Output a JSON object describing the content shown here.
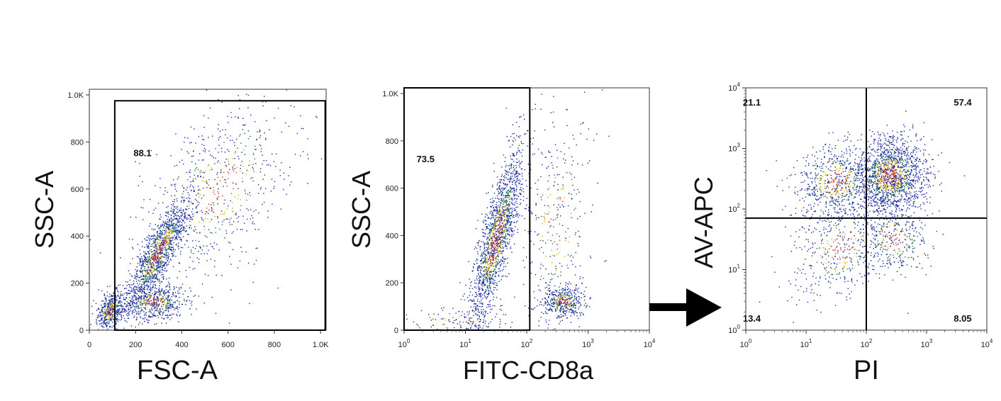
{
  "arrow": {
    "icon": "right-arrow-icon",
    "color": "#000000"
  },
  "chart_data": [
    {
      "type": "scatter",
      "title": "",
      "xlabel": "FSC-A",
      "ylabel": "SSC-A",
      "x_scale": "linear",
      "y_scale": "linear",
      "xlim": [
        0,
        1024
      ],
      "ylim": [
        0,
        1024
      ],
      "x_ticks": [
        {
          "v": 0,
          "t": "0"
        },
        {
          "v": 200,
          "t": "200"
        },
        {
          "v": 400,
          "t": "400"
        },
        {
          "v": 600,
          "t": "600"
        },
        {
          "v": 800,
          "t": "800"
        },
        {
          "v": 1000,
          "t": "1.0K"
        }
      ],
      "y_ticks": [
        {
          "v": 0,
          "t": "0"
        },
        {
          "v": 200,
          "t": "200"
        },
        {
          "v": 400,
          "t": "400"
        },
        {
          "v": 600,
          "t": "600"
        },
        {
          "v": 800,
          "t": "800"
        },
        {
          "v": 1000,
          "t": "1.0K"
        }
      ],
      "gate": {
        "shape": "polygon",
        "points": [
          [
            110,
            975
          ],
          [
            1020,
            975
          ],
          [
            1020,
            0
          ],
          [
            110,
            0
          ]
        ]
      },
      "annotations": [
        {
          "text": "88.1",
          "x": 230,
          "y": 750
        }
      ],
      "point_colors": [
        "#1a2a9a",
        "#1a2a9a",
        "#1f7a3a",
        "#d4b400",
        "#d43a1a"
      ],
      "clusters": [
        {
          "n": 1300,
          "cx": 300,
          "cy": 330,
          "sx": 70,
          "sy": 120,
          "rho": 0.86
        },
        {
          "n": 600,
          "cx": 280,
          "cy": 120,
          "sx": 70,
          "sy": 40,
          "rho": 0.1
        },
        {
          "n": 450,
          "cx": 90,
          "cy": 80,
          "sx": 30,
          "sy": 40,
          "rho": 0.3
        },
        {
          "n": 700,
          "cx": 560,
          "cy": 600,
          "sx": 170,
          "sy": 210,
          "rho": 0.55
        }
      ]
    },
    {
      "type": "scatter",
      "title": "",
      "xlabel": "FITC-CD8a",
      "ylabel": "SSC-A",
      "x_scale": "log",
      "y_scale": "linear",
      "xlim": [
        0,
        4
      ],
      "ylim": [
        0,
        1024
      ],
      "x_ticks": [
        {
          "v": 0,
          "t": "10^0"
        },
        {
          "v": 1,
          "t": "10^1"
        },
        {
          "v": 2,
          "t": "10^2"
        },
        {
          "v": 3,
          "t": "10^3"
        },
        {
          "v": 4,
          "t": "10^4"
        }
      ],
      "y_ticks": [
        {
          "v": 0,
          "t": "0"
        },
        {
          "v": 200,
          "t": "200"
        },
        {
          "v": 400,
          "t": "400"
        },
        {
          "v": 600,
          "t": "600"
        },
        {
          "v": 800,
          "t": "800"
        },
        {
          "v": 1000,
          "t": "1.0K"
        }
      ],
      "gate": {
        "shape": "polygon",
        "points": [
          [
            0,
            1024
          ],
          [
            2.05,
            1024
          ],
          [
            2.05,
            0
          ],
          [
            0,
            0
          ]
        ]
      },
      "annotations": [
        {
          "text": "73.5",
          "x": 0.35,
          "y": 720
        }
      ],
      "point_colors": [
        "#1a2a9a",
        "#1a2a9a",
        "#1f7a3a",
        "#d4b400",
        "#d43a1a"
      ],
      "clusters": [
        {
          "n": 1700,
          "cx": 1.5,
          "cy": 380,
          "sx": 0.22,
          "sy": 190,
          "rho": 0.82
        },
        {
          "n": 450,
          "cx": 2.6,
          "cy": 120,
          "sx": 0.17,
          "sy": 35,
          "rho": 0.1
        },
        {
          "n": 350,
          "cx": 2.5,
          "cy": 450,
          "sx": 0.3,
          "sy": 250,
          "rho": 0.2
        },
        {
          "n": 120,
          "cx": 0.9,
          "cy": 40,
          "sx": 0.45,
          "sy": 30,
          "rho": 0.0
        }
      ]
    },
    {
      "type": "scatter",
      "title": "",
      "xlabel": "PI",
      "ylabel": "AV-APC",
      "x_scale": "log",
      "y_scale": "log",
      "xlim": [
        0,
        4
      ],
      "ylim": [
        0,
        4
      ],
      "x_ticks": [
        {
          "v": 0,
          "t": "10^0"
        },
        {
          "v": 1,
          "t": "10^1"
        },
        {
          "v": 2,
          "t": "10^2"
        },
        {
          "v": 3,
          "t": "10^3"
        },
        {
          "v": 4,
          "t": "10^4"
        }
      ],
      "y_ticks": [
        {
          "v": 0,
          "t": "10^0"
        },
        {
          "v": 1,
          "t": "10^1"
        },
        {
          "v": 2,
          "t": "10^2"
        },
        {
          "v": 3,
          "t": "10^3"
        },
        {
          "v": 4,
          "t": "10^4"
        }
      ],
      "quadrant_gate": {
        "x": 2.0,
        "y": 1.85
      },
      "annotations": [
        {
          "text": "21.1",
          "x": 0.1,
          "y": 3.75
        },
        {
          "text": "57.4",
          "x": 3.6,
          "y": 3.75
        },
        {
          "text": "13.4",
          "x": 0.1,
          "y": 0.18
        },
        {
          "text": "8.05",
          "x": 3.6,
          "y": 0.18
        }
      ],
      "point_colors": [
        "#1a2a9a",
        "#1a2a9a",
        "#1f7a3a",
        "#d4b400",
        "#d43a1a"
      ],
      "clusters": [
        {
          "n": 1600,
          "cx": 2.4,
          "cy": 2.55,
          "sx": 0.3,
          "sy": 0.32,
          "rho": 0.1
        },
        {
          "n": 650,
          "cx": 1.5,
          "cy": 2.45,
          "sx": 0.35,
          "sy": 0.3,
          "rho": 0.1
        },
        {
          "n": 450,
          "cx": 1.6,
          "cy": 1.35,
          "sx": 0.45,
          "sy": 0.45,
          "rho": 0.3
        },
        {
          "n": 350,
          "cx": 2.45,
          "cy": 1.5,
          "sx": 0.3,
          "sy": 0.3,
          "rho": 0.0
        }
      ]
    }
  ]
}
